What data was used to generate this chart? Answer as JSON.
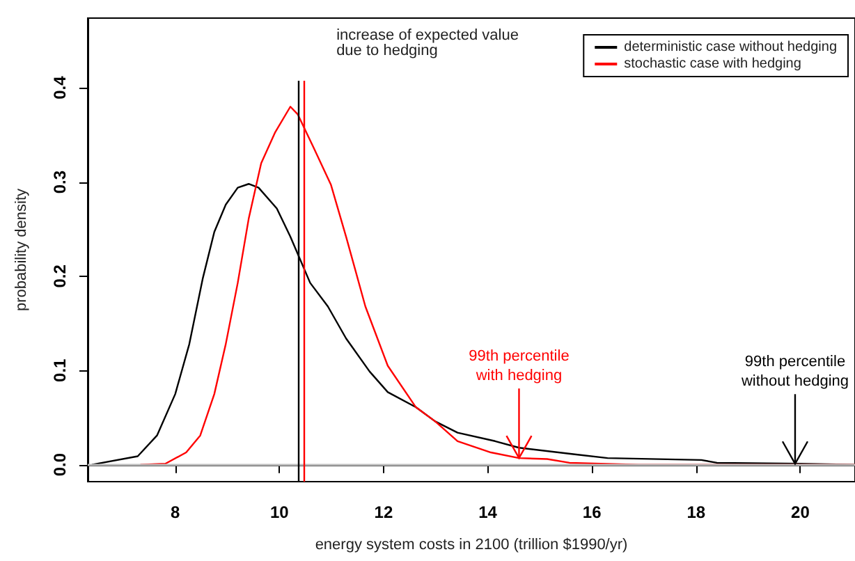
{
  "chart_data": {
    "type": "line",
    "xlabel": "energy system costs in 2100 (trillion $1990/yr)",
    "ylabel": "probability density",
    "xlim": [
      6.32,
      21.05
    ],
    "xticks": [
      8,
      10,
      12,
      14,
      16,
      18,
      20
    ],
    "ylim": [
      -0.018,
      0.474
    ],
    "yticks": [
      {
        "value": 0,
        "label": "0.0"
      },
      {
        "value": 0.1,
        "label": "0.1"
      },
      {
        "value": 0.2,
        "label": "0.2"
      },
      {
        "value": 0.3,
        "label": "0.3"
      },
      {
        "value": 0.4,
        "label": "0.4"
      }
    ],
    "grid": false,
    "legend": "top right",
    "marker": "none",
    "line_style": "solid",
    "series": [
      {
        "name": "deterministic case without hedging",
        "color": "#000000",
        "x": [
          6.4,
          7.28,
          7.65,
          8.0,
          8.27,
          8.53,
          8.75,
          8.97,
          9.2,
          9.41,
          9.6,
          9.95,
          10.21,
          10.59,
          10.93,
          11.28,
          11.73,
          12.08,
          12.62,
          12.99,
          13.42,
          14.14,
          14.6,
          15.67,
          16.3,
          18.1,
          18.4,
          20.0,
          21.05
        ],
        "values": [
          0,
          0.009,
          0.031,
          0.075,
          0.128,
          0.198,
          0.247,
          0.276,
          0.294,
          0.298,
          0.294,
          0.272,
          0.242,
          0.193,
          0.168,
          0.134,
          0.099,
          0.077,
          0.061,
          0.046,
          0.034,
          0.025,
          0.018,
          0.011,
          0.007,
          0.005,
          0.002,
          0.001,
          0
        ]
      },
      {
        "name": "stochastic case with hedging",
        "color": "#ff0000",
        "x": [
          7.33,
          7.81,
          8.21,
          8.48,
          8.75,
          8.97,
          9.2,
          9.41,
          9.65,
          9.92,
          10.21,
          10.35,
          10.67,
          10.99,
          11.28,
          11.65,
          12.08,
          12.62,
          12.99,
          13.42,
          14.06,
          14.6,
          15.14,
          15.57,
          16.9,
          21.05
        ],
        "values": [
          0,
          0.001,
          0.013,
          0.031,
          0.075,
          0.128,
          0.193,
          0.261,
          0.32,
          0.353,
          0.38,
          0.372,
          0.335,
          0.297,
          0.242,
          0.168,
          0.105,
          0.061,
          0.046,
          0.025,
          0.013,
          0.007,
          0.006,
          0.002,
          0,
          0
        ]
      }
    ],
    "ref_lines": [
      {
        "axis": "y",
        "value": 0,
        "color": "#bbbbbb"
      },
      {
        "axis": "x",
        "value": 10.37,
        "color": "#000000"
      },
      {
        "axis": "x",
        "value": 10.48,
        "color": "#ff0000"
      }
    ],
    "annotations": [
      "increase of expected value\ndue to hedging",
      {
        "text": "99th percentile\nwith hedging",
        "x": 14.6,
        "y": 0.007
      },
      {
        "text": "99th percentile\nwithout hedging",
        "x": 19.9,
        "y": 0.001
      }
    ]
  }
}
